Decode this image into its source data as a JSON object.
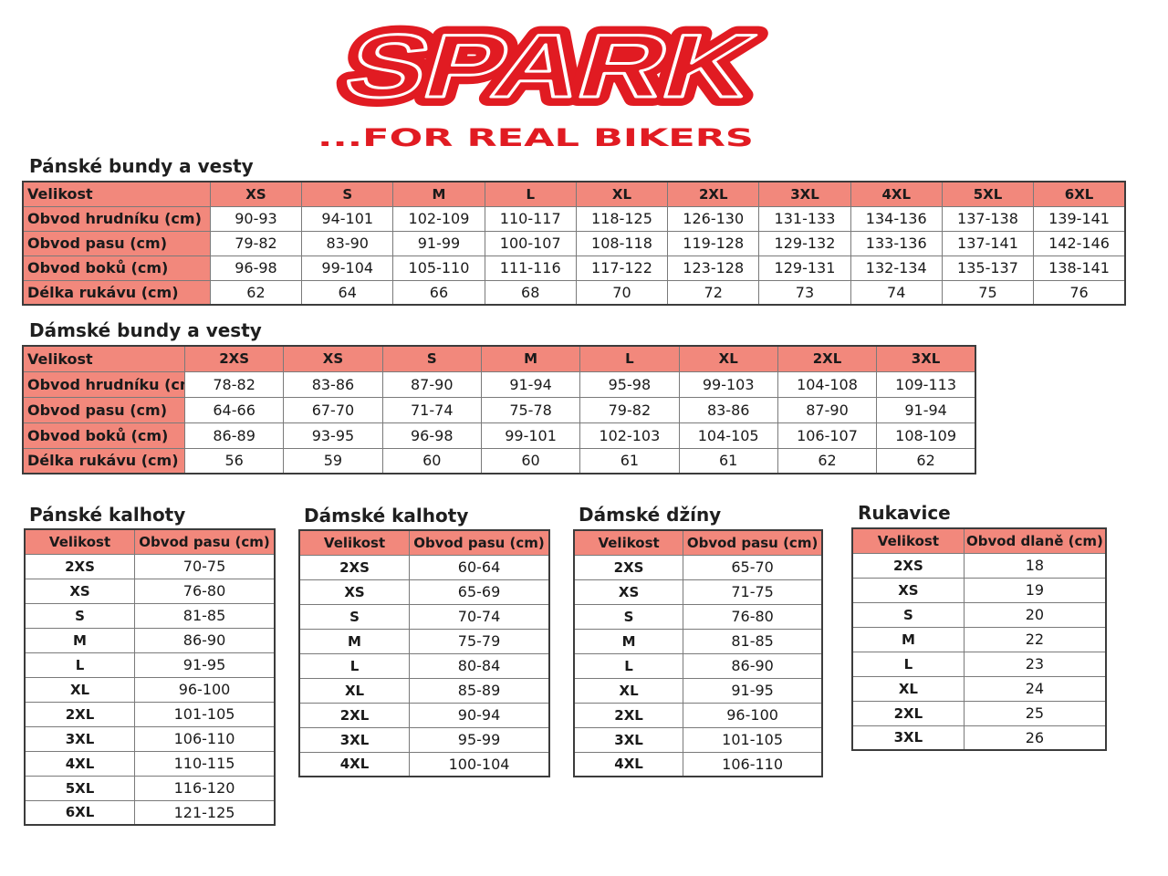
{
  "brand": {
    "logo_text": "SPARK",
    "tagline": "...FOR REAL BIKERS",
    "colors": {
      "red": "#e11b22",
      "header_fill": "#f2887c"
    }
  },
  "mens_jackets": {
    "title": "Pánské bundy a vesty",
    "header": [
      "Velikost",
      "XS",
      "S",
      "M",
      "L",
      "XL",
      "2XL",
      "3XL",
      "4XL",
      "5XL",
      "6XL"
    ],
    "rows": [
      [
        "Obvod hrudníku (cm)",
        "90-93",
        "94-101",
        "102-109",
        "110-117",
        "118-125",
        "126-130",
        "131-133",
        "134-136",
        "137-138",
        "139-141"
      ],
      [
        "Obvod pasu (cm)",
        "79-82",
        "83-90",
        "91-99",
        "100-107",
        "108-118",
        "119-128",
        "129-132",
        "133-136",
        "137-141",
        "142-146"
      ],
      [
        "Obvod boků (cm)",
        "96-98",
        "99-104",
        "105-110",
        "111-116",
        "117-122",
        "123-128",
        "129-131",
        "132-134",
        "135-137",
        "138-141"
      ],
      [
        "Délka rukávu (cm)",
        "62",
        "64",
        "66",
        "68",
        "70",
        "72",
        "73",
        "74",
        "75",
        "76"
      ]
    ]
  },
  "womens_jackets": {
    "title": "Dámské bundy a vesty",
    "header": [
      "Velikost",
      "2XS",
      "XS",
      "S",
      "M",
      "L",
      "XL",
      "2XL",
      "3XL"
    ],
    "rows": [
      [
        "Obvod hrudníku (cm)",
        "78-82",
        "83-86",
        "87-90",
        "91-94",
        "95-98",
        "99-103",
        "104-108",
        "109-113"
      ],
      [
        "Obvod pasu (cm)",
        "64-66",
        "67-70",
        "71-74",
        "75-78",
        "79-82",
        "83-86",
        "87-90",
        "91-94"
      ],
      [
        "Obvod boků (cm)",
        "86-89",
        "93-95",
        "96-98",
        "99-101",
        "102-103",
        "104-105",
        "106-107",
        "108-109"
      ],
      [
        "Délka rukávu (cm)",
        "56",
        "59",
        "60",
        "60",
        "61",
        "61",
        "62",
        "62"
      ]
    ]
  },
  "mens_pants": {
    "title": "Pánské kalhoty",
    "header": [
      "Velikost",
      "Obvod pasu (cm)"
    ],
    "rows": [
      [
        "2XS",
        "70-75"
      ],
      [
        "XS",
        "76-80"
      ],
      [
        "S",
        "81-85"
      ],
      [
        "M",
        "86-90"
      ],
      [
        "L",
        "91-95"
      ],
      [
        "XL",
        "96-100"
      ],
      [
        "2XL",
        "101-105"
      ],
      [
        "3XL",
        "106-110"
      ],
      [
        "4XL",
        "110-115"
      ],
      [
        "5XL",
        "116-120"
      ],
      [
        "6XL",
        "121-125"
      ]
    ]
  },
  "womens_pants": {
    "title": "Dámské kalhoty",
    "header": [
      "Velikost",
      "Obvod pasu (cm)"
    ],
    "rows": [
      [
        "2XS",
        "60-64"
      ],
      [
        "XS",
        "65-69"
      ],
      [
        "S",
        "70-74"
      ],
      [
        "M",
        "75-79"
      ],
      [
        "L",
        "80-84"
      ],
      [
        "XL",
        "85-89"
      ],
      [
        "2XL",
        "90-94"
      ],
      [
        "3XL",
        "95-99"
      ],
      [
        "4XL",
        "100-104"
      ]
    ]
  },
  "womens_jeans": {
    "title": "Dámské džíny",
    "header": [
      "Velikost",
      "Obvod pasu (cm)"
    ],
    "rows": [
      [
        "2XS",
        "65-70"
      ],
      [
        "XS",
        "71-75"
      ],
      [
        "S",
        "76-80"
      ],
      [
        "M",
        "81-85"
      ],
      [
        "L",
        "86-90"
      ],
      [
        "XL",
        "91-95"
      ],
      [
        "2XL",
        "96-100"
      ],
      [
        "3XL",
        "101-105"
      ],
      [
        "4XL",
        "106-110"
      ]
    ]
  },
  "gloves": {
    "title": "Rukavice",
    "header": [
      "Velikost",
      "Obvod dlaně (cm)"
    ],
    "rows": [
      [
        "2XS",
        "18"
      ],
      [
        "XS",
        "19"
      ],
      [
        "S",
        "20"
      ],
      [
        "M",
        "22"
      ],
      [
        "L",
        "23"
      ],
      [
        "XL",
        "24"
      ],
      [
        "2XL",
        "25"
      ],
      [
        "3XL",
        "26"
      ]
    ]
  }
}
